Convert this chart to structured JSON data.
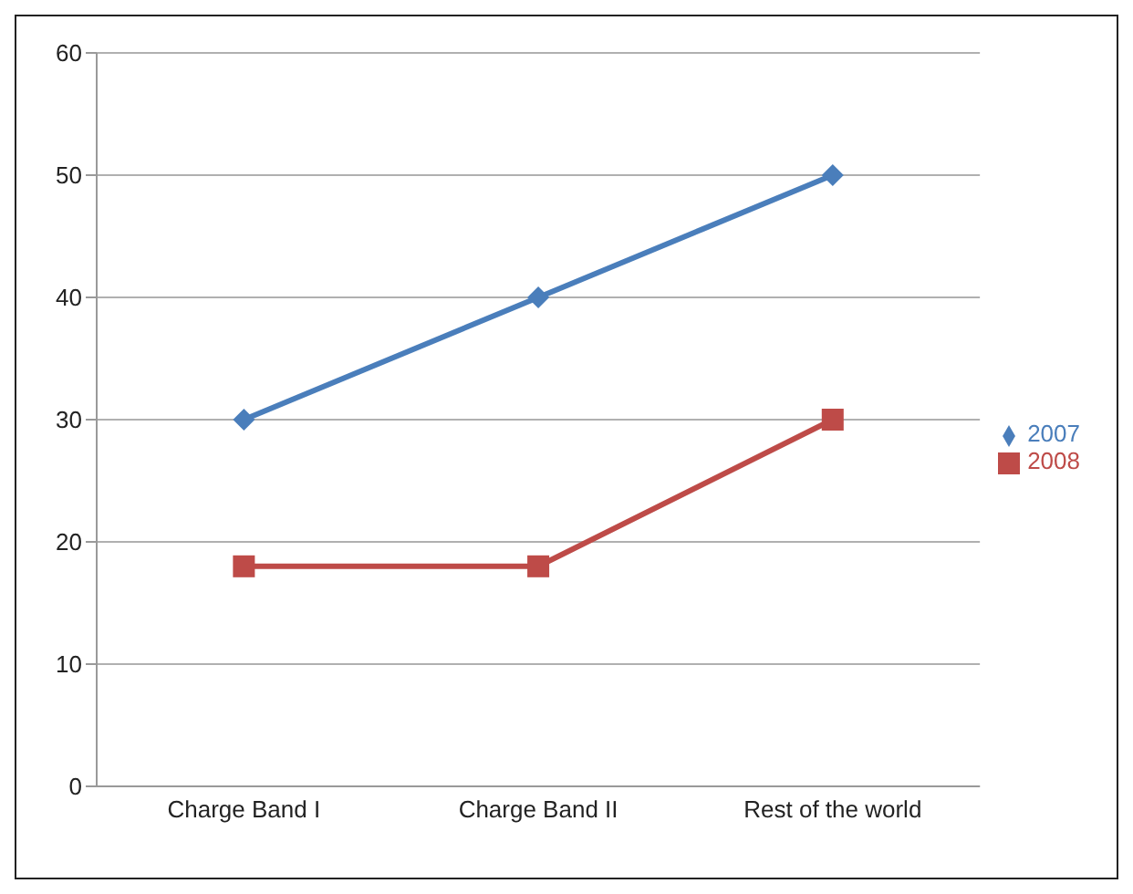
{
  "chart_data": {
    "type": "line",
    "categories": [
      "Charge Band I",
      "Charge Band II",
      "Rest of the world"
    ],
    "series": [
      {
        "name": "2007",
        "color": "#4a7ebb",
        "values": [
          30,
          40,
          50
        ],
        "marker": "diamond"
      },
      {
        "name": "2008",
        "color": "#be4b48",
        "values": [
          18,
          18,
          30
        ],
        "marker": "square"
      }
    ],
    "ylim": [
      0,
      60
    ],
    "yticks": [
      0,
      10,
      20,
      30,
      40,
      50,
      60
    ],
    "grid": "y",
    "legend": "right"
  }
}
